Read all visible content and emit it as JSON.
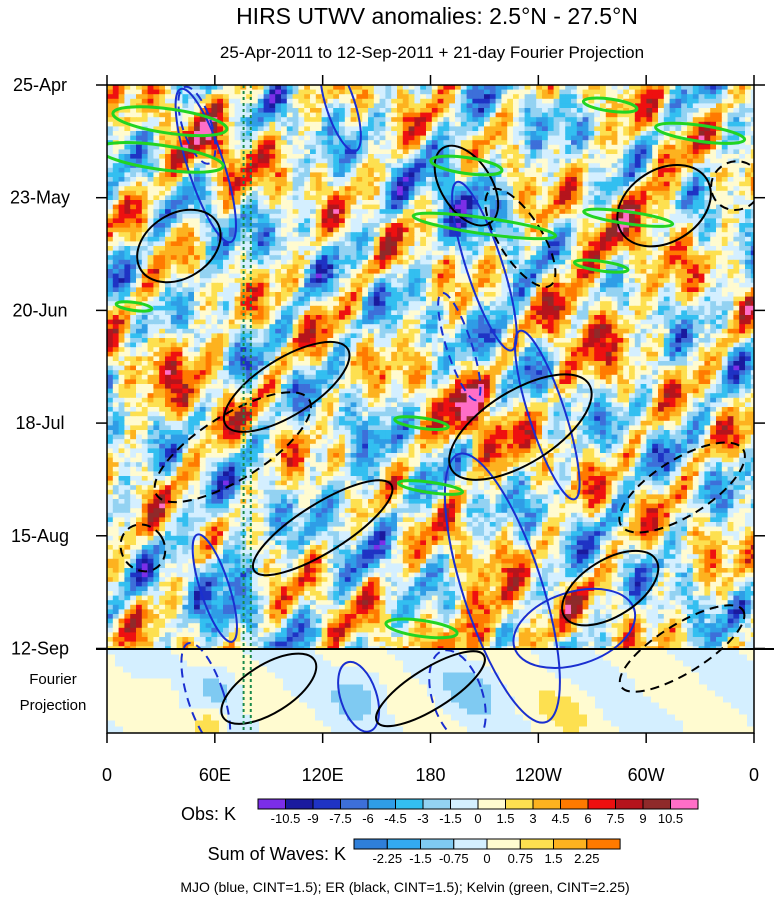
{
  "chart_data": {
    "type": "heatmap",
    "title": "HIRS UTWV anomalies: 2.5°N - 27.5°N",
    "subtitle": "25-Apr-2011 to 12-Sep-2011 + 21-day Fourier Projection",
    "x_ticks": [
      "0",
      "60E",
      "120E",
      "180",
      "120W",
      "60W",
      "0"
    ],
    "x_range_deg": [
      0,
      360
    ],
    "y_ticks": [
      "25-Apr",
      "23-May",
      "20-Jun",
      "18-Jul",
      "15-Aug",
      "12-Sep"
    ],
    "y_range_days": [
      0,
      161
    ],
    "obs_days": 140,
    "projection_days": 21,
    "projection_label": [
      "Fourier",
      "Projection"
    ],
    "obs_colorbar": {
      "label": "Obs: K",
      "levels": [
        "-10.5",
        "-9",
        "-7.5",
        "-6",
        "-4.5",
        "-3",
        "-1.5",
        "0",
        "1.5",
        "3",
        "4.5",
        "6",
        "7.5",
        "9",
        "10.5"
      ],
      "colors": [
        "#7b2ee8",
        "#1a1a9e",
        "#1f33c4",
        "#3d6fd9",
        "#2f9de6",
        "#33bff0",
        "#93d2f2",
        "#d4efff",
        "#fffbd0",
        "#fde050",
        "#fdb21f",
        "#ff7a00",
        "#ee1010",
        "#b5141c",
        "#8f2a2a",
        "#ff6ec7"
      ]
    },
    "waves_colorbar": {
      "label": "Sum of Waves: K",
      "levels": [
        "-2.25",
        "-1.5",
        "-0.75",
        "0",
        "0.75",
        "1.5",
        "2.25"
      ],
      "colors": [
        "#2f7fd9",
        "#33aaf0",
        "#7fcaf2",
        "#d4efff",
        "#fffbd0",
        "#fde050",
        "#fdb21f",
        "#ff7a00"
      ]
    },
    "overlay_legend": "MJO (blue, CINT=1.5); ER (black, CINT=1.5); Kelvin (green, CINT=2.25)",
    "reference_lines_deg": [
      76,
      80
    ],
    "series": [
      {
        "name": "MJO",
        "color": "#1a2fd0",
        "cint": 1.5,
        "ellipses": [
          {
            "lon": 55,
            "day": 20,
            "rlon": 10,
            "rday": 20,
            "sign": 1
          },
          {
            "lon": 50,
            "day": 10,
            "rlon": 8,
            "rday": 10,
            "sign": -1
          },
          {
            "lon": 210,
            "day": 45,
            "rlon": 10,
            "rday": 22,
            "sign": 1
          },
          {
            "lon": 196,
            "day": 65,
            "rlon": 7,
            "rday": 14,
            "sign": -1
          },
          {
            "lon": 245,
            "day": 82,
            "rlon": 10,
            "rday": 22,
            "sign": 1
          },
          {
            "lon": 220,
            "day": 125,
            "rlon": 22,
            "rday": 35,
            "sign": 1
          },
          {
            "lon": 195,
            "day": 152,
            "rlon": 14,
            "rday": 12,
            "sign": -1
          },
          {
            "lon": 60,
            "day": 125,
            "rlon": 8,
            "rday": 14,
            "sign": 1
          },
          {
            "lon": 55,
            "day": 152,
            "rlon": 10,
            "rday": 14,
            "sign": -1
          },
          {
            "lon": 130,
            "day": 5,
            "rlon": 8,
            "rday": 12,
            "sign": 1
          },
          {
            "lon": 260,
            "day": 135,
            "rlon": 35,
            "rday": 9,
            "sign": 1
          },
          {
            "lon": 140,
            "day": 152,
            "rlon": 10,
            "rday": 9,
            "sign": 1
          }
        ]
      },
      {
        "name": "ER",
        "color": "#000000",
        "cint": 1.5,
        "ellipses": [
          {
            "lon": 200,
            "day": 25,
            "rlon": 14,
            "rday": 11,
            "sign": 1
          },
          {
            "lon": 230,
            "day": 38,
            "rlon": 12,
            "rday": 14,
            "sign": -1
          },
          {
            "lon": 310,
            "day": 30,
            "rlon": 28,
            "rday": 9,
            "sign": 1
          },
          {
            "lon": 350,
            "day": 25,
            "rlon": 14,
            "rday": 6,
            "sign": -1
          },
          {
            "lon": 40,
            "day": 40,
            "rlon": 25,
            "rday": 8,
            "sign": 1
          },
          {
            "lon": 100,
            "day": 75,
            "rlon": 40,
            "rday": 7,
            "sign": 1
          },
          {
            "lon": 70,
            "day": 90,
            "rlon": 50,
            "rday": 8,
            "sign": -1
          },
          {
            "lon": 230,
            "day": 85,
            "rlon": 45,
            "rday": 9,
            "sign": 1
          },
          {
            "lon": 320,
            "day": 100,
            "rlon": 40,
            "rday": 7,
            "sign": -1
          },
          {
            "lon": 120,
            "day": 110,
            "rlon": 45,
            "rday": 6,
            "sign": 1
          },
          {
            "lon": 280,
            "day": 125,
            "rlon": 30,
            "rday": 7,
            "sign": 1
          },
          {
            "lon": 320,
            "day": 140,
            "rlon": 40,
            "rday": 6,
            "sign": -1
          },
          {
            "lon": 180,
            "day": 150,
            "rlon": 35,
            "rday": 5,
            "sign": 1
          },
          {
            "lon": 20,
            "day": 115,
            "rlon": 12,
            "rday": 6,
            "sign": -1
          },
          {
            "lon": 90,
            "day": 150,
            "rlon": 30,
            "rday": 6,
            "sign": 1
          }
        ]
      },
      {
        "name": "Kelvin",
        "color": "#22d422",
        "cint": 2.25,
        "ellipses": [
          {
            "lon": 35,
            "day": 9,
            "rlon": 32,
            "rday": 3,
            "sign": 1
          },
          {
            "lon": 30,
            "day": 18,
            "rlon": 35,
            "rday": 3,
            "sign": 1
          },
          {
            "lon": 200,
            "day": 20,
            "rlon": 20,
            "rday": 2,
            "sign": 1
          },
          {
            "lon": 210,
            "day": 35,
            "rlon": 40,
            "rday": 2,
            "sign": 1
          },
          {
            "lon": 290,
            "day": 33,
            "rlon": 25,
            "rday": 1.5,
            "sign": 1
          },
          {
            "lon": 275,
            "day": 45,
            "rlon": 15,
            "rday": 1.2,
            "sign": 1
          },
          {
            "lon": 330,
            "day": 12,
            "rlon": 25,
            "rday": 2,
            "sign": 1
          },
          {
            "lon": 280,
            "day": 5,
            "rlon": 15,
            "rday": 1.5,
            "sign": 1
          },
          {
            "lon": 175,
            "day": 84,
            "rlon": 15,
            "rday": 1.3,
            "sign": 1
          },
          {
            "lon": 180,
            "day": 100,
            "rlon": 18,
            "rday": 1.3,
            "sign": 1
          },
          {
            "lon": 175,
            "day": 135,
            "rlon": 20,
            "rday": 2,
            "sign": 1
          },
          {
            "lon": 15,
            "day": 55,
            "rlon": 10,
            "rday": 1,
            "sign": 1
          }
        ]
      }
    ]
  }
}
